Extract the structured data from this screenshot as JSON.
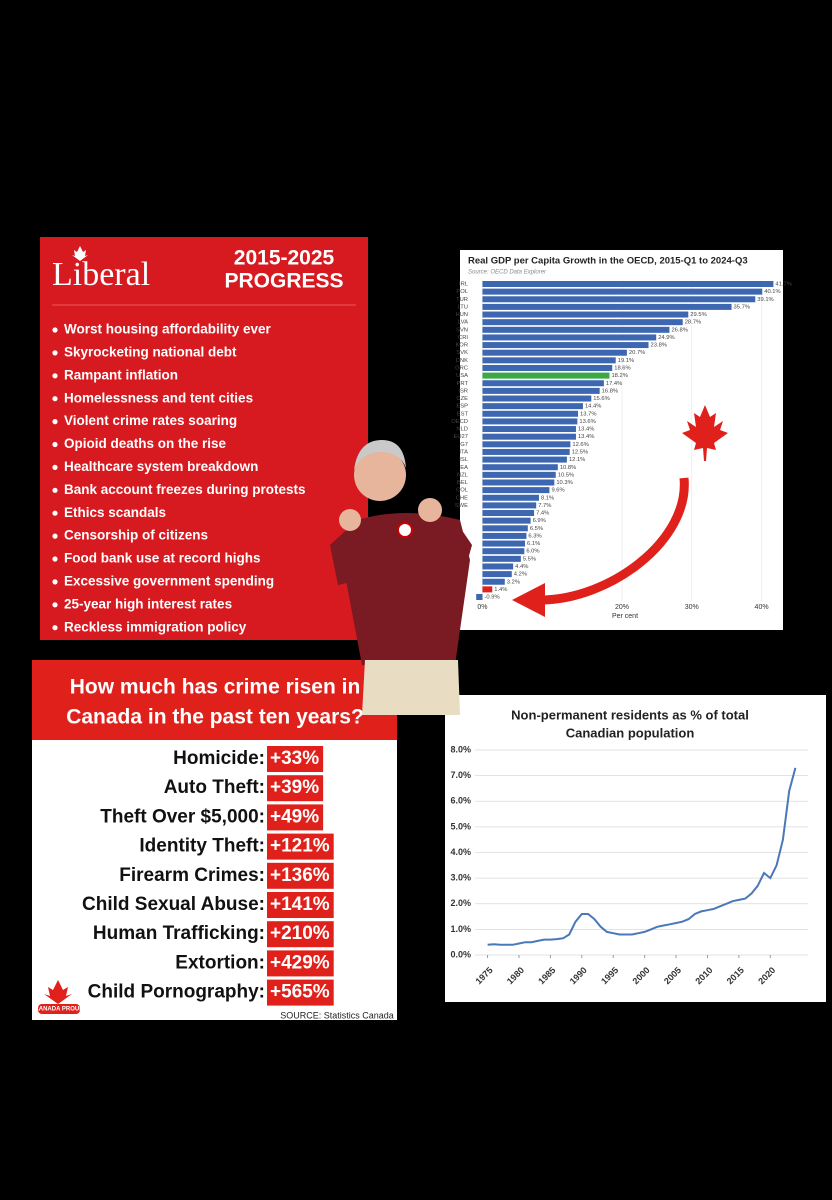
{
  "liberal_panel": {
    "logo": "Liberal",
    "heading": [
      "2015-2025",
      "PROGRESS"
    ],
    "items": [
      "Worst housing affordability ever",
      "Skyrocketing national debt",
      "Rampant inflation",
      "Homelessness and tent cities",
      "Violent crime rates soaring",
      "Opioid deaths on the rise",
      "Healthcare system breakdown",
      "Bank account freezes during protests",
      "Ethics scandals",
      "Censorship of citizens",
      "Food bank use at record highs",
      "Excessive government spending",
      "25-year high interest rates",
      "Reckless immigration policy"
    ]
  },
  "crime_panel": {
    "heading": [
      "How much has crime risen in",
      "Canada in the past ten years?"
    ],
    "rows": [
      [
        "Homicide:",
        "+33%"
      ],
      [
        "Auto Theft:",
        "+39%"
      ],
      [
        "Theft Over $5,000:",
        "+49%"
      ],
      [
        "Identity Theft:",
        "+121%"
      ],
      [
        "Firearm Crimes:",
        "+136%"
      ],
      [
        "Child Sexual Abuse:",
        "+141%"
      ],
      [
        "Human Trafficking:",
        "+210%"
      ],
      [
        "Extortion:",
        "+429%"
      ],
      [
        "Child Pornography:",
        "+565%"
      ]
    ],
    "logo": "CANADA PROUD",
    "source": "SOURCE: Statistics Canada"
  },
  "chart_data": [
    {
      "type": "bar",
      "horizontal": true,
      "title": "Real GDP per Capita Growth in the OECD, 2015-Q1 to 2024-Q3",
      "subtitle": "Source: OECD Data Explorer",
      "x_label": "Per cent",
      "categories": [
        "IRL",
        "POL",
        "TUR",
        "LTU",
        "HUN",
        "LVA",
        "SVN",
        "CRI",
        "KOR",
        "SVK",
        "DNK",
        "GRC",
        "USA",
        "PRT",
        "ISR",
        "CZE",
        "ESP",
        "EST",
        "OECD",
        "NLD",
        "EU27",
        "G7",
        "ITA",
        "ISL",
        "EA",
        "NZL",
        "BEL",
        "COL",
        "CHE",
        "SWE",
        null,
        null,
        null,
        null,
        null,
        null,
        null,
        null,
        null,
        null,
        null,
        null
      ],
      "values": [
        41.7,
        40.1,
        39.1,
        35.7,
        29.5,
        28.7,
        26.8,
        24.9,
        23.8,
        20.7,
        19.1,
        18.6,
        18.2,
        17.4,
        16.8,
        15.6,
        14.4,
        13.7,
        13.6,
        13.4,
        13.4,
        12.6,
        12.5,
        12.1,
        10.8,
        10.5,
        10.3,
        9.6,
        8.1,
        7.7,
        7.4,
        6.9,
        6.5,
        6.3,
        6.1,
        6.0,
        5.5,
        4.4,
        4.2,
        3.2,
        1.4,
        -0.9
      ],
      "value_labels": [
        "41.7%",
        "40.1%",
        "39.1%",
        "35.7%",
        "29.5%",
        "28.7%",
        "26.8%",
        "24.9%",
        "23.8%",
        "20.7%",
        "19.1%",
        "18.6%",
        "18.2%",
        "17.4%",
        "16.8%",
        "15.6%",
        "14.4%",
        "13.7%",
        "13.6%",
        "13.4%",
        "13.4%",
        "12.6%",
        "12.5%",
        "12.1%",
        "10.8%",
        "10.5%",
        "10.3%",
        "9.6%",
        "8.1%",
        "7.7%",
        "7.4%",
        "6.9%",
        "6.5%",
        "6.3%",
        "6.1%",
        "6.0%",
        "5.5%",
        "4.4%",
        "4.2%",
        "3.2%",
        "1.4%",
        "-0.9%"
      ],
      "colors": [
        "#3d67b1",
        "#3d67b1",
        "#3d67b1",
        "#3d67b1",
        "#3d67b1",
        "#3d67b1",
        "#3d67b1",
        "#3d67b1",
        "#3d67b1",
        "#3d67b1",
        "#3d67b1",
        "#3d67b1",
        "#3aa845",
        "#3d67b1",
        "#3d67b1",
        "#3d67b1",
        "#3d67b1",
        "#3d67b1",
        "#3d67b1",
        "#3d67b1",
        "#3d67b1",
        "#3d67b1",
        "#3d67b1",
        "#3d67b1",
        "#3d67b1",
        "#3d67b1",
        "#3d67b1",
        "#3d67b1",
        "#3d67b1",
        "#3d67b1",
        "#3d67b1",
        "#3d67b1",
        "#3d67b1",
        "#3d67b1",
        "#3d67b1",
        "#3d67b1",
        "#3d67b1",
        "#3d67b1",
        "#3d67b1",
        "#3d67b1",
        "#e0201b",
        "#3d67b1"
      ],
      "xlim": [
        -1.5,
        42.5
      ],
      "xticks": [
        {
          "value": 0,
          "label": "0%"
        },
        {
          "value": 20,
          "label": "20%"
        },
        {
          "value": 30,
          "label": "30%"
        },
        {
          "value": 40,
          "label": "40%"
        }
      ]
    },
    {
      "type": "line",
      "title": [
        "Non-permanent residents as % of total",
        "Canadian population"
      ],
      "color": "#4a78b8",
      "grid": true,
      "x": [
        1975,
        1976,
        1977,
        1978,
        1979,
        1980,
        1981,
        1982,
        1983,
        1984,
        1985,
        1986,
        1987,
        1988,
        1989,
        1990,
        1991,
        1992,
        1993,
        1994,
        1995,
        1996,
        1997,
        1998,
        1999,
        2000,
        2001,
        2002,
        2003,
        2004,
        2005,
        2006,
        2007,
        2008,
        2009,
        2010,
        2011,
        2012,
        2013,
        2014,
        2015,
        2016,
        2017,
        2018,
        2019,
        2020,
        2021,
        2022,
        2023,
        2024
      ],
      "values": [
        0.4,
        0.42,
        0.4,
        0.4,
        0.4,
        0.45,
        0.5,
        0.5,
        0.55,
        0.6,
        0.6,
        0.62,
        0.65,
        0.8,
        1.3,
        1.6,
        1.6,
        1.4,
        1.1,
        0.9,
        0.85,
        0.8,
        0.8,
        0.8,
        0.85,
        0.9,
        1.0,
        1.1,
        1.15,
        1.2,
        1.25,
        1.3,
        1.4,
        1.6,
        1.7,
        1.75,
        1.8,
        1.9,
        2.0,
        2.1,
        2.15,
        2.2,
        2.4,
        2.7,
        3.2,
        3.0,
        3.5,
        4.5,
        6.4,
        7.3
      ],
      "xlim": [
        1973,
        2026
      ],
      "xticks": [
        1975,
        1980,
        1985,
        1990,
        1995,
        2000,
        2005,
        2010,
        2015,
        2020
      ],
      "ylim": [
        0,
        8
      ],
      "yticks": [
        {
          "value": 0,
          "label": "0.0%"
        },
        {
          "value": 1,
          "label": "1.0%"
        },
        {
          "value": 2,
          "label": "2.0%"
        },
        {
          "value": 3,
          "label": "3.0%"
        },
        {
          "value": 4,
          "label": "4.0%"
        },
        {
          "value": 5,
          "label": "5.0%"
        },
        {
          "value": 6,
          "label": "6.0%"
        },
        {
          "value": 7,
          "label": "7.0%"
        },
        {
          "value": 8,
          "label": "8.0%"
        }
      ]
    }
  ]
}
